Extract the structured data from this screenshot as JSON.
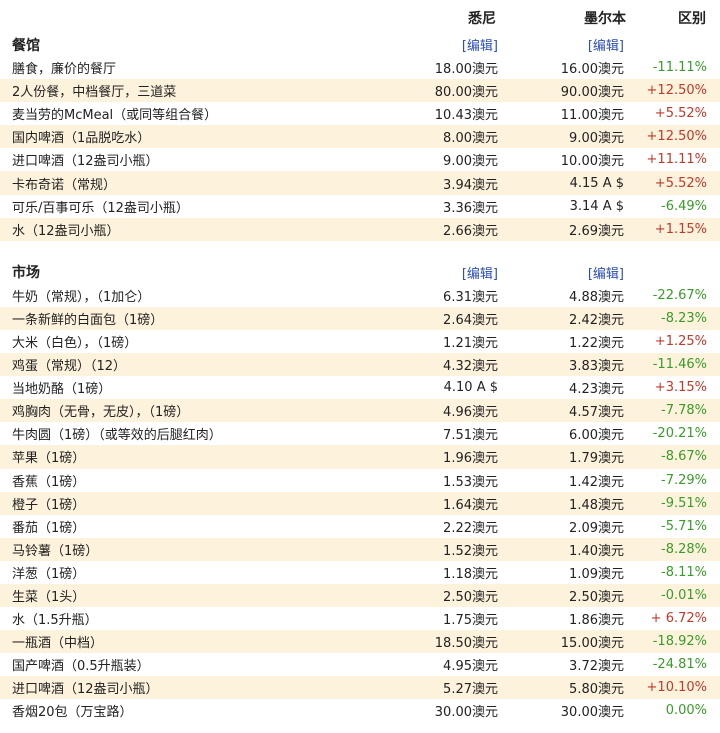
{
  "header": {
    "col_sydney": "悉尼",
    "col_melbourne": "墨尔本",
    "col_diff": "区别"
  },
  "sections": [
    {
      "title": "餐馆",
      "edit_sydney": "[编辑]",
      "edit_melbourne": "[编辑]",
      "rows": [
        {
          "name": "膳食，廉价的餐厅",
          "sydney": "18.00澳元",
          "melbourne": "16.00澳元",
          "diff": "-11.11%",
          "trend": "neg"
        },
        {
          "name": "2人份餐，中档餐厅，三道菜",
          "sydney": "80.00澳元",
          "melbourne": "90.00澳元",
          "diff": "+12.50%",
          "trend": "pos"
        },
        {
          "name": "麦当劳的McMeal（或同等组合餐）",
          "sydney": "10.43澳元",
          "melbourne": "11.00澳元",
          "diff": "+5.52%",
          "trend": "pos"
        },
        {
          "name": "国内啤酒（1品脱吃水）",
          "sydney": "8.00澳元",
          "melbourne": "9.00澳元",
          "diff": "+12.50%",
          "trend": "pos"
        },
        {
          "name": "进口啤酒（12盎司小瓶）",
          "sydney": "9.00澳元",
          "melbourne": "10.00澳元",
          "diff": "+11.11%",
          "trend": "pos"
        },
        {
          "name": "卡布奇诺（常规）",
          "sydney": "3.94澳元",
          "melbourne": "4.15 A $",
          "diff": "+5.52%",
          "trend": "pos"
        },
        {
          "name": "可乐/百事可乐（12盎司小瓶）",
          "sydney": "3.36澳元",
          "melbourne": "3.14 A $",
          "diff": "-6.49%",
          "trend": "neg"
        },
        {
          "name": "水（12盎司小瓶）",
          "sydney": "2.66澳元",
          "melbourne": "2.69澳元",
          "diff": "+1.15%",
          "trend": "pos"
        }
      ]
    },
    {
      "title": "市场",
      "edit_sydney": "[编辑]",
      "edit_melbourne": "[编辑]",
      "rows": [
        {
          "name": "牛奶（常规），（1加仑）",
          "sydney": "6.31澳元",
          "melbourne": "4.88澳元",
          "diff": "-22.67%",
          "trend": "neg"
        },
        {
          "name": "一条新鲜的白面包（1磅）",
          "sydney": "2.64澳元",
          "melbourne": "2.42澳元",
          "diff": "-8.23%",
          "trend": "neg"
        },
        {
          "name": "大米（白色），（1磅）",
          "sydney": "1.21澳元",
          "melbourne": "1.22澳元",
          "diff": "+1.25%",
          "trend": "pos"
        },
        {
          "name": "鸡蛋（常规）（12）",
          "sydney": "4.32澳元",
          "melbourne": "3.83澳元",
          "diff": "-11.46%",
          "trend": "neg"
        },
        {
          "name": "当地奶酪（1磅）",
          "sydney": "4.10 A $",
          "melbourne": "4.23澳元",
          "diff": "+3.15%",
          "trend": "pos"
        },
        {
          "name": "鸡胸肉（无骨，无皮），（1磅）",
          "sydney": "4.96澳元",
          "melbourne": "4.57澳元",
          "diff": "-7.78%",
          "trend": "neg"
        },
        {
          "name": "牛肉圆（1磅）（或等效的后腿红肉）",
          "sydney": "7.51澳元",
          "melbourne": "6.00澳元",
          "diff": "-20.21%",
          "trend": "neg"
        },
        {
          "name": "苹果（1磅）",
          "sydney": "1.96澳元",
          "melbourne": "1.79澳元",
          "diff": "-8.67%",
          "trend": "neg"
        },
        {
          "name": "香蕉（1磅）",
          "sydney": "1.53澳元",
          "melbourne": "1.42澳元",
          "diff": "-7.29%",
          "trend": "neg"
        },
        {
          "name": "橙子（1磅）",
          "sydney": "1.64澳元",
          "melbourne": "1.48澳元",
          "diff": "-9.51%",
          "trend": "neg"
        },
        {
          "name": "番茄（1磅）",
          "sydney": "2.22澳元",
          "melbourne": "2.09澳元",
          "diff": "-5.71%",
          "trend": "neg"
        },
        {
          "name": "马铃薯（1磅）",
          "sydney": "1.52澳元",
          "melbourne": "1.40澳元",
          "diff": "-8.28%",
          "trend": "neg"
        },
        {
          "name": "洋葱（1磅）",
          "sydney": "1.18澳元",
          "melbourne": "1.09澳元",
          "diff": "-8.11%",
          "trend": "neg"
        },
        {
          "name": "生菜（1头）",
          "sydney": "2.50澳元",
          "melbourne": "2.50澳元",
          "diff": "-0.01%",
          "trend": "neg"
        },
        {
          "name": "水（1.5升瓶）",
          "sydney": "1.75澳元",
          "melbourne": "1.86澳元",
          "diff": "+ 6.72%",
          "trend": "pos"
        },
        {
          "name": "一瓶酒（中档）",
          "sydney": "18.50澳元",
          "melbourne": "15.00澳元",
          "diff": "-18.92%",
          "trend": "neg"
        },
        {
          "name": "国产啤酒（0.5升瓶装）",
          "sydney": "4.95澳元",
          "melbourne": "3.72澳元",
          "diff": "-24.81%",
          "trend": "neg"
        },
        {
          "name": "进口啤酒（12盎司小瓶）",
          "sydney": "5.27澳元",
          "melbourne": "5.80澳元",
          "diff": "+10.10%",
          "trend": "pos"
        },
        {
          "name": "香烟20包（万宝路）",
          "sydney": "30.00澳元",
          "melbourne": "30.00澳元",
          "diff": "0.00%",
          "trend": "neg"
        }
      ]
    }
  ],
  "colors": {
    "row_stripe": "#fdf3dd",
    "link": "#2b4fb5",
    "decrease": "#3a9a2a",
    "increase": "#c0392b"
  }
}
